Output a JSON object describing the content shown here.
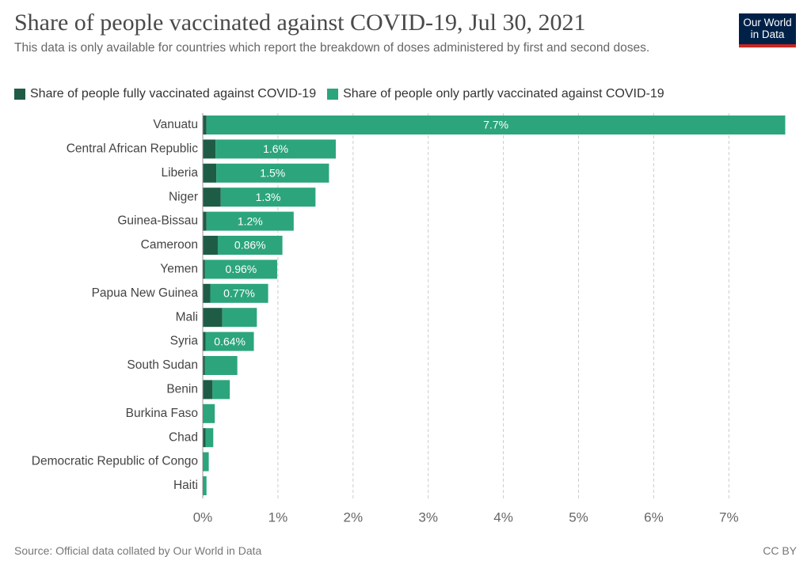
{
  "logo": [
    "Our World",
    "in Data"
  ],
  "chart_data": {
    "type": "stacked-bar-horizontal",
    "title": "Share of people vaccinated against COVID-19, Jul 30, 2021",
    "subtitle": "This data is only available for countries which report the breakdown of doses administered by first and second doses.",
    "categories": [
      "Vanuatu",
      "Central African Republic",
      "Liberia",
      "Niger",
      "Guinea-Bissau",
      "Cameroon",
      "Yemen",
      "Papua New Guinea",
      "Mali",
      "Syria",
      "South Sudan",
      "Benin",
      "Burkina Faso",
      "Chad",
      "Democratic Republic of Congo",
      "Haiti"
    ],
    "series": [
      {
        "name": "Share of people fully vaccinated against COVID-19",
        "color": "#1f5c46",
        "values": [
          0.05,
          0.17,
          0.18,
          0.24,
          0.05,
          0.2,
          0.03,
          0.1,
          0.26,
          0.04,
          0.03,
          0.13,
          0.01,
          0.04,
          0.01,
          0.01
        ]
      },
      {
        "name": "Share of people only partly vaccinated against COVID-19",
        "color": "#2ca57c",
        "values": [
          7.7,
          1.6,
          1.5,
          1.26,
          1.16,
          0.86,
          0.96,
          0.77,
          0.46,
          0.64,
          0.43,
          0.23,
          0.15,
          0.1,
          0.07,
          0.04
        ],
        "value_labels": [
          "7.7%",
          "1.6%",
          "1.5%",
          "1.3%",
          "1.2%",
          "0.86%",
          "0.96%",
          "0.77%",
          null,
          "0.64%",
          null,
          null,
          null,
          null,
          null,
          null
        ]
      }
    ],
    "xlim": [
      0,
      7.8
    ],
    "xticks": [
      {
        "value": 0,
        "label": "0%"
      },
      {
        "value": 1,
        "label": "1%"
      },
      {
        "value": 2,
        "label": "2%"
      },
      {
        "value": 3,
        "label": "3%"
      },
      {
        "value": 4,
        "label": "4%"
      },
      {
        "value": 5,
        "label": "5%"
      },
      {
        "value": 6,
        "label": "6%"
      },
      {
        "value": 7,
        "label": "7%"
      }
    ],
    "grid": true,
    "source": "Source: Official data collated by Our World in Data",
    "license": "CC BY"
  }
}
